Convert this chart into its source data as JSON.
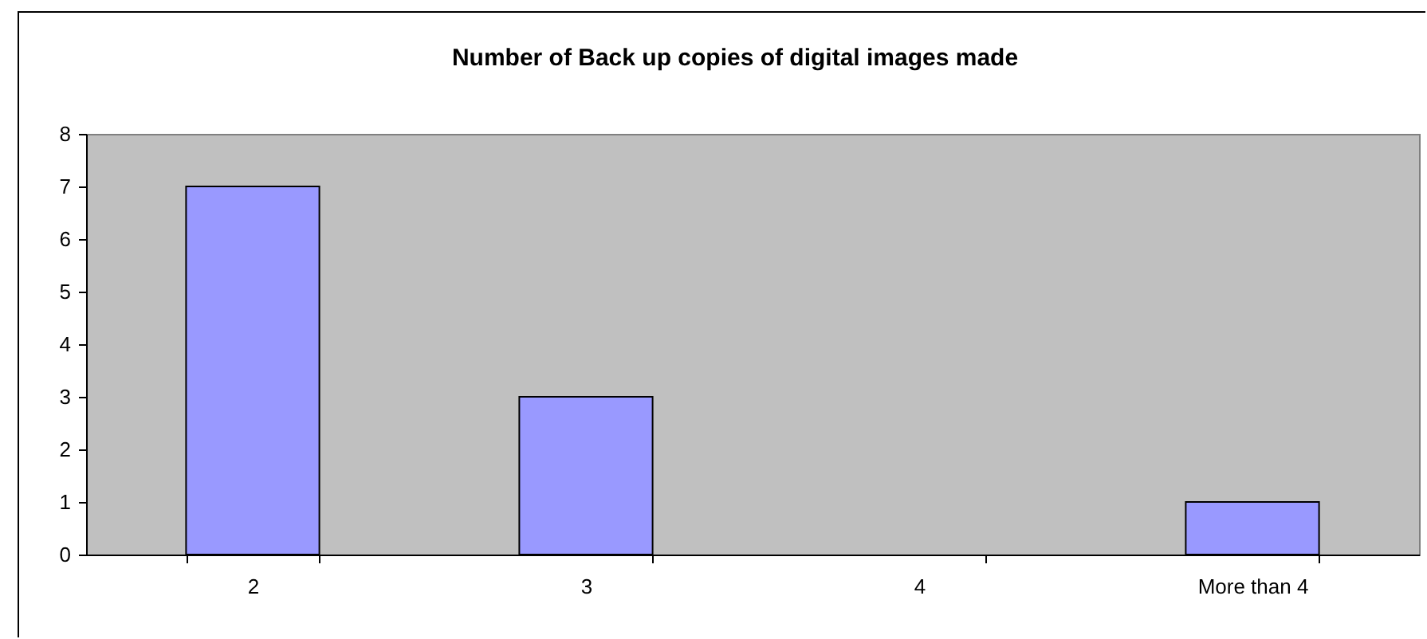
{
  "chart_data": {
    "type": "bar",
    "title": "Number of Back up copies of digital images made",
    "categories": [
      "2",
      "3",
      "4",
      "More than 4"
    ],
    "values": [
      7,
      3,
      0,
      1
    ],
    "color": "#9999ff",
    "ylim": [
      0,
      8
    ],
    "yticks": [
      0,
      1,
      2,
      3,
      4,
      5,
      6,
      7,
      8
    ],
    "grid": false
  }
}
